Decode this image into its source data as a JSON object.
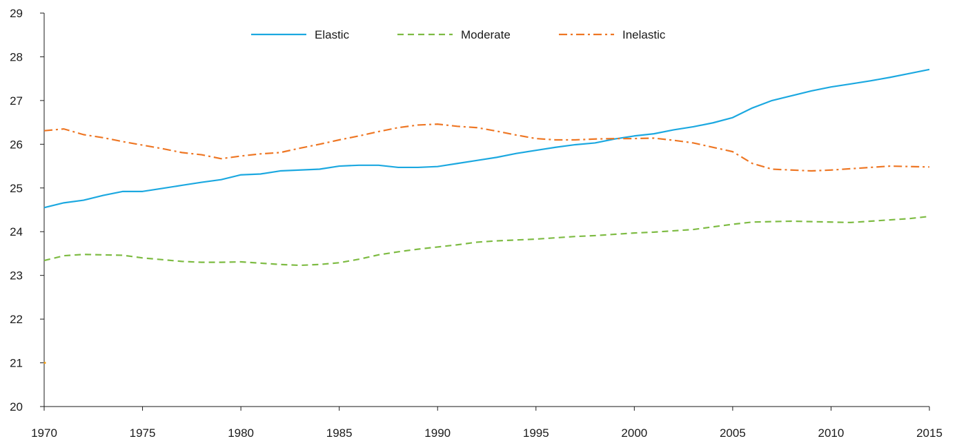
{
  "chart_data": {
    "type": "line",
    "title": "",
    "xlabel": "",
    "ylabel": "",
    "xlim": [
      1970,
      2015
    ],
    "ylim": [
      20,
      29
    ],
    "x_ticks": [
      1970,
      1975,
      1980,
      1985,
      1990,
      1995,
      2000,
      2005,
      2010,
      2015
    ],
    "y_ticks": [
      20,
      21,
      22,
      23,
      24,
      25,
      26,
      27,
      28,
      29
    ],
    "grid": false,
    "legend_position": "top-center",
    "x": [
      1970,
      1971,
      1972,
      1973,
      1974,
      1975,
      1976,
      1977,
      1978,
      1979,
      1980,
      1981,
      1982,
      1983,
      1984,
      1985,
      1986,
      1987,
      1988,
      1989,
      1990,
      1991,
      1992,
      1993,
      1994,
      1995,
      1996,
      1997,
      1998,
      1999,
      2000,
      2001,
      2002,
      2003,
      2004,
      2005,
      2006,
      2007,
      2008,
      2009,
      2010,
      2011,
      2012,
      2013,
      2014,
      2015
    ],
    "series": [
      {
        "name": "Elastic",
        "color": "#1ba8e0",
        "dash": "solid",
        "values": [
          24.55,
          24.66,
          24.72,
          24.83,
          24.92,
          24.92,
          24.99,
          25.06,
          25.13,
          25.19,
          25.3,
          25.32,
          25.39,
          25.41,
          25.43,
          25.5,
          25.52,
          25.52,
          25.47,
          25.47,
          25.49,
          25.56,
          25.63,
          25.7,
          25.79,
          25.86,
          25.93,
          25.99,
          26.03,
          26.12,
          26.19,
          26.24,
          26.33,
          26.4,
          26.49,
          26.61,
          26.83,
          27.0,
          27.11,
          27.22,
          27.31,
          27.38,
          27.45,
          27.53,
          27.62,
          27.71
        ]
      },
      {
        "name": "Moderate",
        "color": "#7dbb42",
        "dash": "dashed",
        "values": [
          23.34,
          23.45,
          23.48,
          23.47,
          23.46,
          23.4,
          23.36,
          23.32,
          23.3,
          23.3,
          23.31,
          23.28,
          23.25,
          23.23,
          23.25,
          23.29,
          23.37,
          23.47,
          23.54,
          23.6,
          23.65,
          23.7,
          23.76,
          23.79,
          23.81,
          23.83,
          23.86,
          23.89,
          23.91,
          23.94,
          23.97,
          23.99,
          24.02,
          24.05,
          24.11,
          24.17,
          24.22,
          24.23,
          24.24,
          24.23,
          24.22,
          24.21,
          24.24,
          24.27,
          24.3,
          24.35
        ]
      },
      {
        "name": "Inelastic",
        "color": "#ee7623",
        "dash": "dash-dot",
        "values": [
          26.31,
          26.35,
          26.22,
          26.15,
          26.06,
          25.98,
          25.9,
          25.81,
          25.76,
          25.67,
          25.73,
          25.78,
          25.81,
          25.91,
          26.0,
          26.1,
          26.19,
          26.29,
          26.38,
          26.44,
          26.46,
          26.41,
          26.38,
          26.3,
          26.21,
          26.13,
          26.1,
          26.1,
          26.12,
          26.13,
          26.13,
          26.14,
          26.09,
          26.03,
          25.93,
          25.83,
          25.56,
          25.43,
          25.41,
          25.39,
          25.41,
          25.44,
          25.47,
          25.5,
          25.49,
          25.48
        ]
      }
    ],
    "stray_point": {
      "x": 1970,
      "y": 21.0,
      "color": "#f2a01a"
    }
  }
}
